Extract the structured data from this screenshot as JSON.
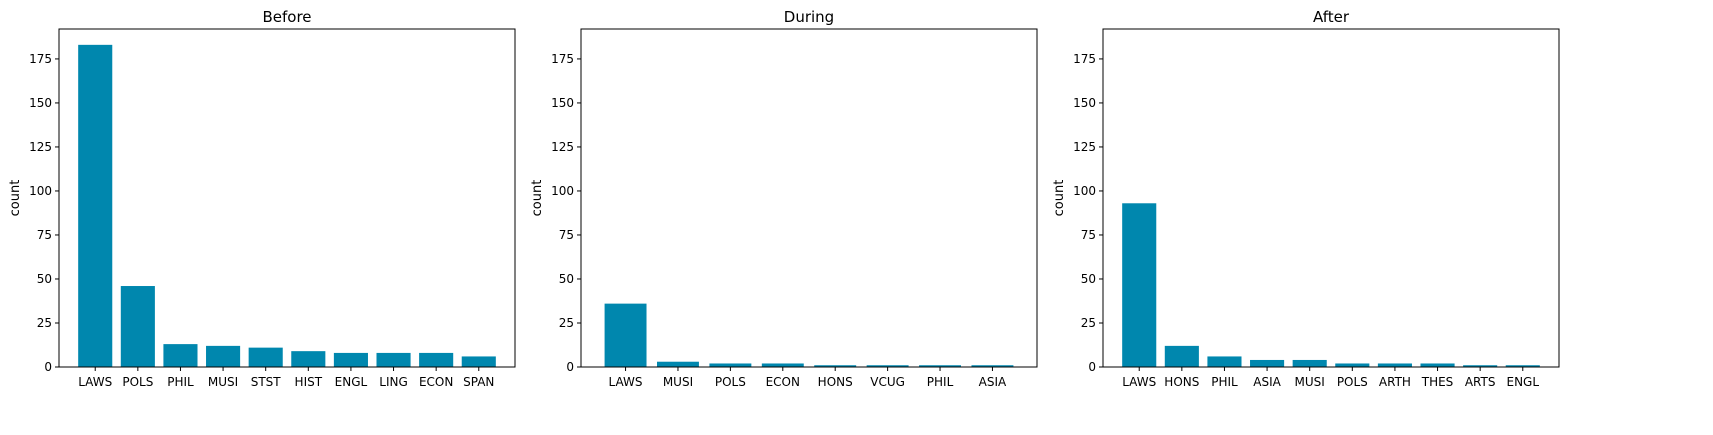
{
  "chart_data": [
    {
      "type": "bar",
      "title": "Before",
      "xlabel": "",
      "ylabel": "count",
      "ylim": [
        0,
        192
      ],
      "yticks": [
        0,
        25,
        50,
        75,
        100,
        125,
        150,
        175
      ],
      "grid": false,
      "categories": [
        "LAWS",
        "POLS",
        "PHIL",
        "MUSI",
        "STST",
        "HIST",
        "ENGL",
        "LING",
        "ECON",
        "SPAN"
      ],
      "values": [
        183,
        46,
        13,
        12,
        11,
        9,
        8,
        8,
        8,
        6
      ]
    },
    {
      "type": "bar",
      "title": "During",
      "xlabel": "",
      "ylabel": "count",
      "ylim": [
        0,
        192
      ],
      "yticks": [
        0,
        25,
        50,
        75,
        100,
        125,
        150,
        175
      ],
      "grid": false,
      "categories": [
        "LAWS",
        "MUSI",
        "POLS",
        "ECON",
        "HONS",
        "VCUG",
        "PHIL",
        "ASIA"
      ],
      "values": [
        36,
        3,
        2,
        2,
        1,
        1,
        1,
        1
      ]
    },
    {
      "type": "bar",
      "title": "After",
      "xlabel": "",
      "ylabel": "count",
      "ylim": [
        0,
        192
      ],
      "yticks": [
        0,
        25,
        50,
        75,
        100,
        125,
        150,
        175
      ],
      "grid": false,
      "categories": [
        "LAWS",
        "HONS",
        "PHIL",
        "ASIA",
        "MUSI",
        "POLS",
        "ARTH",
        "THES",
        "ARTS",
        "ENGL"
      ],
      "values": [
        93,
        12,
        6,
        4,
        4,
        2,
        2,
        2,
        1,
        1
      ]
    }
  ],
  "colors": {
    "bar": "#0087ae",
    "axis": "#000000",
    "background": "#ffffff"
  }
}
